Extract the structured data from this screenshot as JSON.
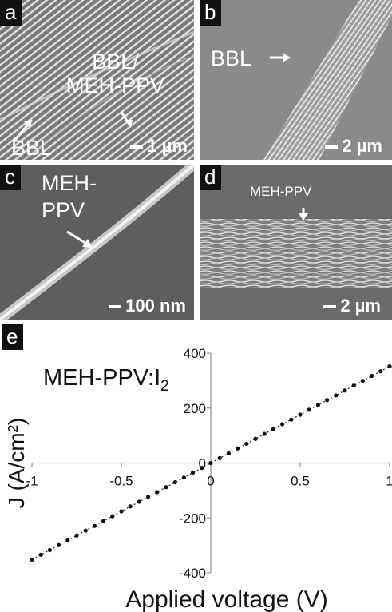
{
  "panels": {
    "a": {
      "tag": "a",
      "label_main": "BBL/\nMEH-PPV",
      "label_side": "BBL",
      "scale": "1 µm"
    },
    "b": {
      "tag": "b",
      "label_main": "BBL",
      "scale": "2 µm"
    },
    "c": {
      "tag": "c",
      "label_main": "MEH-\nPPV",
      "scale": "100 nm"
    },
    "d": {
      "tag": "d",
      "label_main": "MEH-PPV",
      "scale": "2 µm"
    },
    "e": {
      "tag": "e"
    }
  },
  "chart_data": {
    "type": "line",
    "annotation": "MEH-PPV:I",
    "annotation_sub": "2",
    "ylabel": "J (A/cm²)",
    "xlabel": "Applied voltage (V)",
    "xlim": [
      -1,
      1
    ],
    "ylim": [
      -400,
      400
    ],
    "x_ticks": [
      "-1",
      "-0.5",
      "0",
      "0.5",
      "1"
    ],
    "y_ticks": [
      "400",
      "200",
      "0",
      "-200",
      "-400"
    ],
    "grid": false,
    "series": [
      {
        "x": [
          -1,
          -0.95,
          -0.9,
          -0.85,
          -0.8,
          -0.75,
          -0.7,
          -0.65,
          -0.6,
          -0.55,
          -0.5,
          -0.45,
          -0.4,
          -0.35,
          -0.3,
          -0.25,
          -0.2,
          -0.15,
          -0.1,
          -0.05,
          0,
          0.05,
          0.1,
          0.15,
          0.2,
          0.25,
          0.3,
          0.35,
          0.4,
          0.45,
          0.5,
          0.55,
          0.6,
          0.65,
          0.7,
          0.75,
          0.8,
          0.85,
          0.9,
          0.95,
          1
        ],
        "y": [
          -352,
          -334,
          -317,
          -299,
          -282,
          -264,
          -246,
          -229,
          -211,
          -194,
          -176,
          -158,
          -141,
          -123,
          -106,
          -88,
          -70,
          -53,
          -35,
          -18,
          0,
          18,
          35,
          53,
          70,
          88,
          106,
          123,
          141,
          158,
          176,
          194,
          211,
          229,
          246,
          264,
          282,
          299,
          317,
          334,
          352
        ]
      }
    ]
  }
}
